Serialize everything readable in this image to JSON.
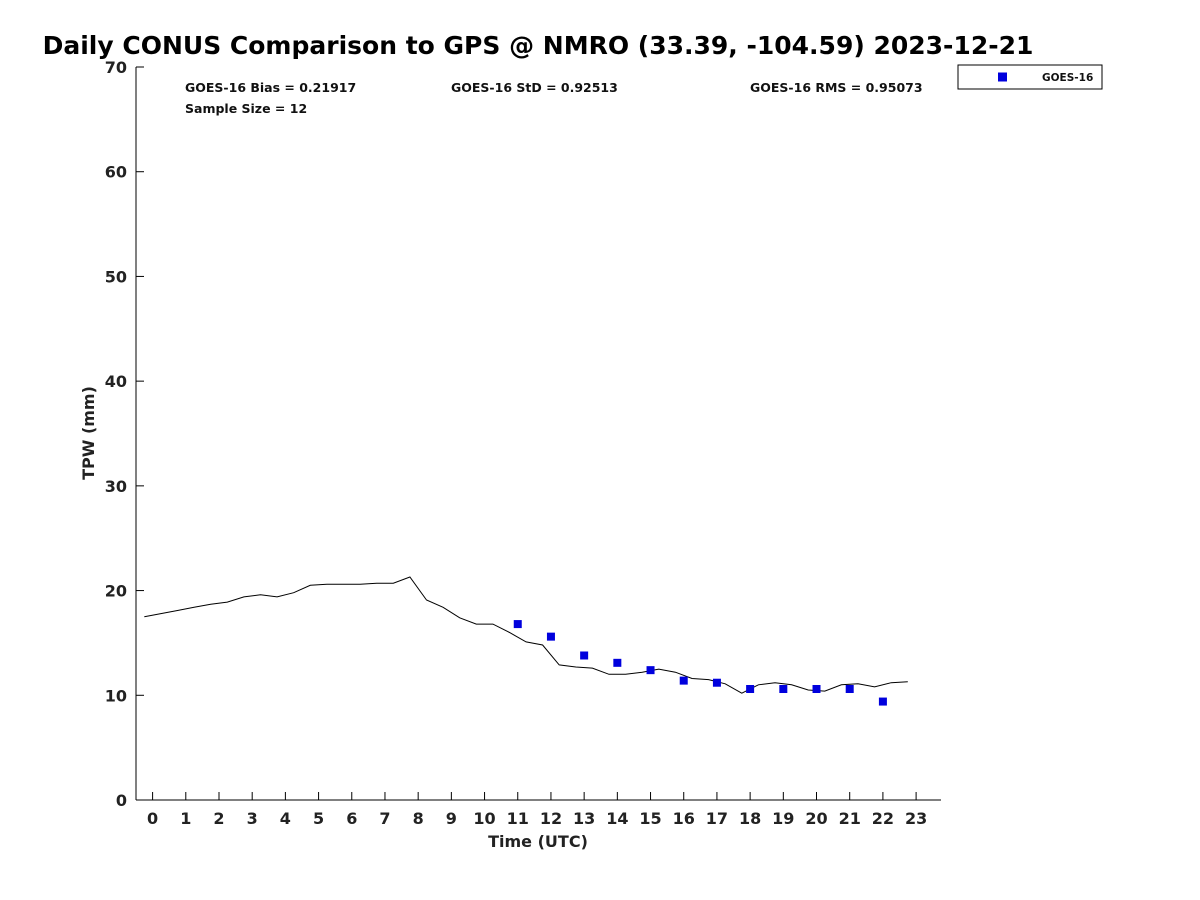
{
  "chart_data": {
    "type": "scatter",
    "title": "Daily CONUS Comparison to GPS @ NMRO (33.39, -104.59) 2023-12-21",
    "xlabel": "Time (UTC)",
    "ylabel": "TPW (mm)",
    "xlim": [
      -0.5,
      23.75
    ],
    "ylim": [
      0,
      70
    ],
    "x_ticks": [
      "0",
      "1",
      "2",
      "3",
      "4",
      "5",
      "6",
      "7",
      "8",
      "9",
      "10",
      "11",
      "12",
      "13",
      "14",
      "15",
      "16",
      "17",
      "18",
      "19",
      "20",
      "21",
      "22",
      "23"
    ],
    "y_ticks": [
      "0",
      "10",
      "20",
      "30",
      "40",
      "50",
      "60",
      "70"
    ],
    "grid": false,
    "legend_position": "top-right, outside plot",
    "stats": {
      "bias": "GOES-16 Bias = 0.21917",
      "std": "GOES-16 StD = 0.92513",
      "rms": "GOES-16 RMS = 0.95073",
      "sample": "Sample Size = 12"
    },
    "series": [
      {
        "name": "GOES-16",
        "kind": "markers",
        "color": "#0000dd",
        "x": [
          11,
          12,
          13,
          14,
          15,
          16,
          17,
          18,
          19,
          20,
          21,
          22
        ],
        "y": [
          16.8,
          15.6,
          13.8,
          13.1,
          12.4,
          11.4,
          11.2,
          10.6,
          10.6,
          10.6,
          10.6,
          9.4
        ]
      },
      {
        "kind": "line",
        "color": "#000000",
        "x": [
          -0.25,
          0.25,
          0.75,
          1.25,
          1.75,
          2.25,
          2.75,
          3.25,
          3.75,
          4.25,
          4.75,
          5.25,
          5.75,
          6.25,
          6.75,
          7.25,
          7.75,
          8.25,
          8.75,
          9.25,
          9.75,
          10.25,
          10.75,
          11.25,
          11.75,
          12.25,
          12.75,
          13.25,
          13.75,
          14.25,
          14.75,
          15.25,
          15.75,
          16.25,
          16.75,
          17.25,
          17.75,
          18.25,
          18.75,
          19.25,
          19.75,
          20.25,
          20.75,
          21.25,
          21.75,
          22.25,
          22.75
        ],
        "y": [
          17.5,
          17.8,
          18.1,
          18.4,
          18.7,
          18.9,
          19.4,
          19.6,
          19.4,
          19.8,
          20.5,
          20.6,
          20.6,
          20.6,
          20.7,
          20.7,
          21.3,
          19.1,
          18.4,
          17.4,
          16.8,
          16.8,
          16.0,
          15.1,
          14.8,
          12.9,
          12.7,
          12.6,
          12.0,
          12.0,
          12.2,
          12.5,
          12.2,
          11.6,
          11.5,
          11.1,
          10.2,
          11.0,
          11.2,
          11.0,
          10.5,
          10.4,
          11.0,
          11.1,
          10.8,
          11.2,
          11.3
        ]
      }
    ]
  }
}
